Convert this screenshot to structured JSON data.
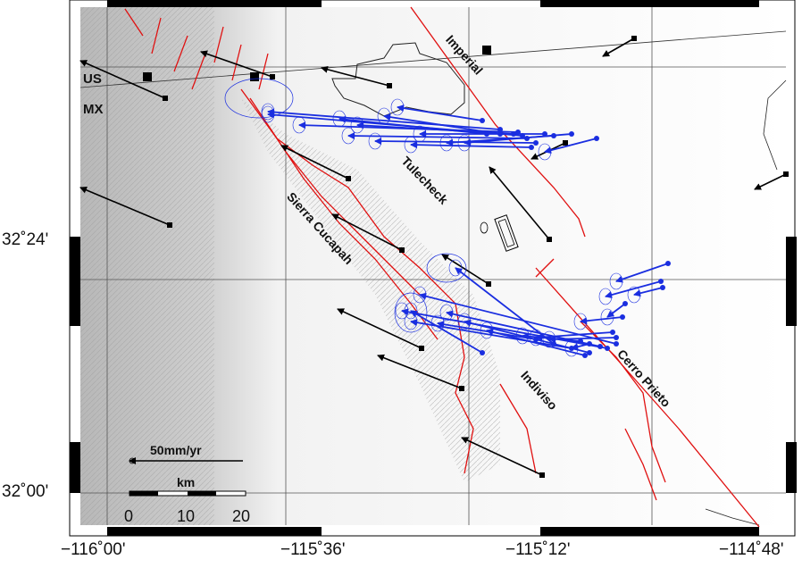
{
  "map": {
    "axes": {
      "x_ticks": [
        "−116˚00'",
        "−115˚36'",
        "−115˚12'",
        "−114˚48'"
      ],
      "y_ticks": [
        "32˚24'",
        "32˚00'"
      ]
    },
    "labels": {
      "us": "US",
      "mx": "MX",
      "imperial": "Imperial",
      "tulecheck": "Tulecheck",
      "sierra_cucapah": "Sierra Cucapah",
      "indiviso": "Indiviso",
      "cerro_prieto": "Cerro Prieto"
    },
    "legend": {
      "velocity_label": "50mm/yr",
      "scale_unit": "km",
      "scale_ticks": [
        "0",
        "10",
        "20"
      ]
    },
    "colors": {
      "fault": "#e01010",
      "blue_vector": "#1a2ee0",
      "black_vector": "#000000",
      "frame": "#000000"
    }
  }
}
